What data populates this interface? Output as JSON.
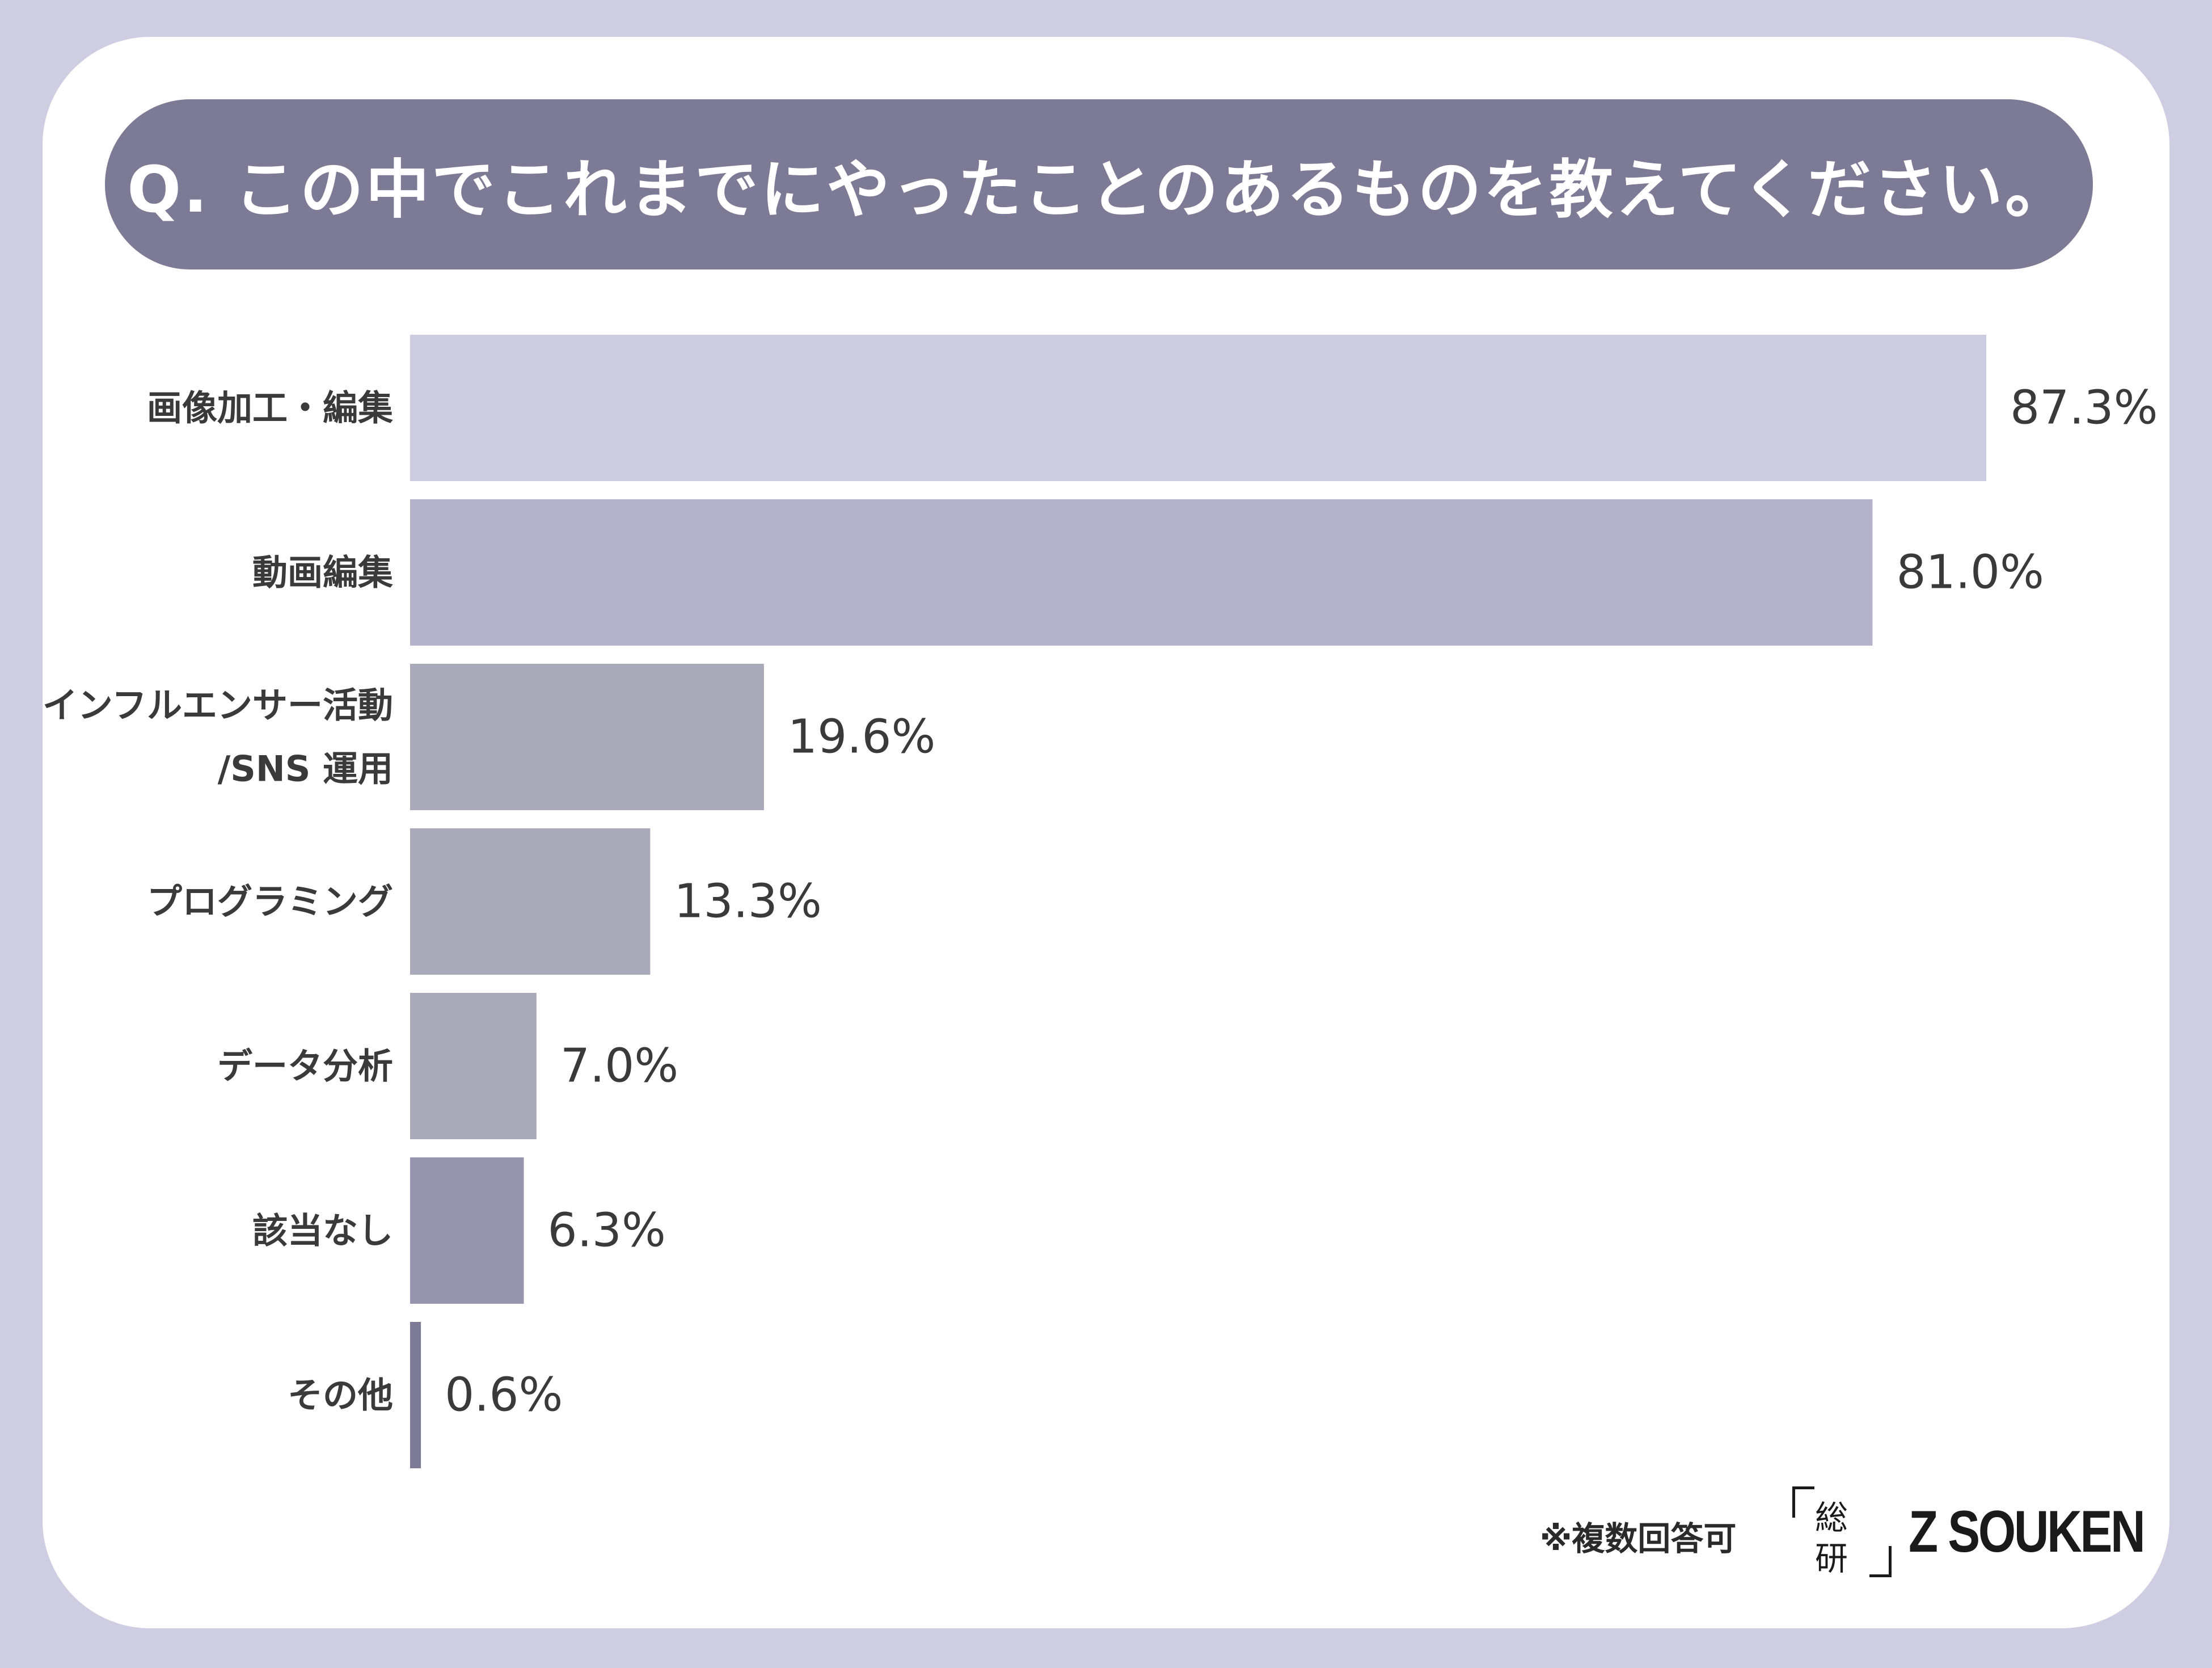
{
  "question": "Q. この中でこれまでにやったことのあるものを教えてください。",
  "footnote": "※複数回答可",
  "logo": {
    "mark_line1": "総",
    "mark_line2": "研",
    "text": "Z SOUKEN"
  },
  "chart_data": {
    "type": "bar",
    "orientation": "horizontal",
    "categories": [
      [
        "画像加工・編集"
      ],
      [
        "動画編集"
      ],
      [
        "インフルエンサー活動",
        "/SNS 運用"
      ],
      [
        "プログラミング"
      ],
      [
        "データ分析"
      ],
      [
        "該当なし"
      ],
      [
        "その他"
      ]
    ],
    "values": [
      87.3,
      81.0,
      19.6,
      13.3,
      7.0,
      6.3,
      0.6
    ],
    "value_labels": [
      "87.3%",
      "81.0%",
      "19.6%",
      "13.3%",
      "7.0%",
      "6.3%",
      "0.6%"
    ],
    "colors": [
      "#cccbe0",
      "#b5b3ca",
      "#aaa9b9",
      "#aaa9b9",
      "#aaa9b9",
      "#9896ae",
      "#7d7a96"
    ],
    "xlim": [
      0,
      87.3
    ],
    "grid": false,
    "legend": "none"
  }
}
